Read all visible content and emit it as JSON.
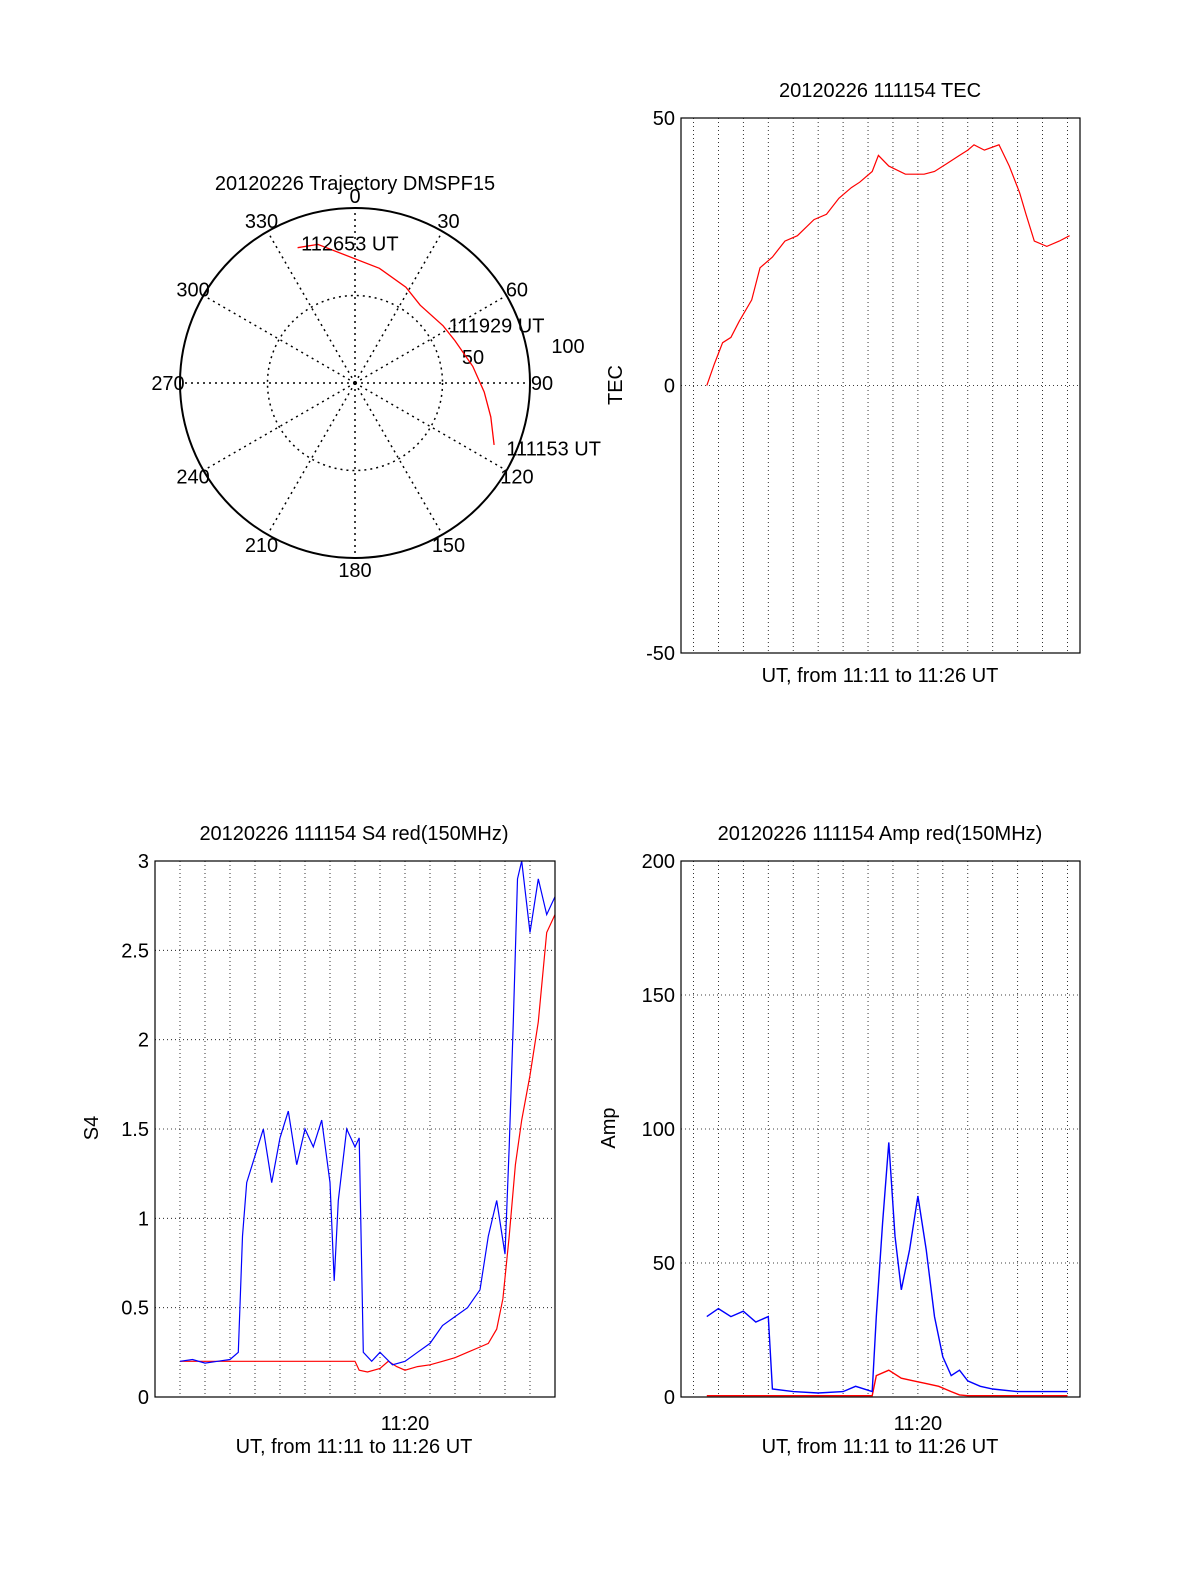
{
  "chart_data": [
    {
      "id": "trajectory",
      "type": "polar",
      "title": "20120226 Trajectory DMSPF15",
      "azimuth_labels": [
        "0",
        "30",
        "60",
        "90",
        "120",
        "150",
        "180",
        "210",
        "240",
        "270",
        "300",
        "330"
      ],
      "radial_labels": [
        "50",
        "100"
      ],
      "rlim": [
        0,
        100
      ],
      "grid": true,
      "track_color": "#ff0000",
      "track": [
        {
          "azimuth": 114,
          "elevation": 13
        },
        {
          "azimuth": 104,
          "elevation": 20
        },
        {
          "azimuth": 94,
          "elevation": 26
        },
        {
          "azimuth": 82,
          "elevation": 32
        },
        {
          "azimuth": 67,
          "elevation": 38
        },
        {
          "azimuth": 57,
          "elevation": 40
        },
        {
          "azimuth": 40,
          "elevation": 42
        },
        {
          "azimuth": 28,
          "elevation": 38
        },
        {
          "azimuth": 12,
          "elevation": 33
        },
        {
          "azimuth": 345,
          "elevation": 18
        },
        {
          "azimuth": 337,
          "elevation": 16
        }
      ],
      "annotations": [
        {
          "text": "112653 UT",
          "azimuth": 339,
          "elevation": 14
        },
        {
          "text": "111929 UT",
          "azimuth": 58,
          "elevation": 37
        },
        {
          "text": "111153 UT",
          "azimuth": 113,
          "elevation": 6
        }
      ]
    },
    {
      "id": "tec",
      "type": "line",
      "title": "20120226 111154 TEC",
      "xlabel": "UT, from 11:11 to 11:26 UT",
      "ylabel": "TEC",
      "xlim": [
        "11:10:30",
        "11:26:30"
      ],
      "ylim": [
        -50,
        50
      ],
      "yticks": [
        "-50",
        "0",
        "50"
      ],
      "xticks": [],
      "grid": true,
      "series": [
        {
          "color": "#ff0000",
          "points": [
            [
              "11:11:32",
              0
            ],
            [
              "11:11:50",
              4
            ],
            [
              "11:12:10",
              8
            ],
            [
              "11:12:30",
              9
            ],
            [
              "11:12:50",
              12
            ],
            [
              "11:13:20",
              16
            ],
            [
              "11:13:40",
              22
            ],
            [
              "11:14:10",
              24
            ],
            [
              "11:14:40",
              27
            ],
            [
              "11:15:10",
              28
            ],
            [
              "11:15:50",
              31
            ],
            [
              "11:16:20",
              32
            ],
            [
              "11:16:50",
              35
            ],
            [
              "11:17:20",
              37
            ],
            [
              "11:17:40",
              38
            ],
            [
              "11:18:10",
              40
            ],
            [
              "11:18:25",
              43
            ],
            [
              "11:18:50",
              41
            ],
            [
              "11:19:30",
              39.5
            ],
            [
              "11:20:15",
              39.5
            ],
            [
              "11:20:40",
              40
            ],
            [
              "11:21:10",
              41.5
            ],
            [
              "11:21:40",
              43
            ],
            [
              "11:22:00",
              44
            ],
            [
              "11:22:15",
              45
            ],
            [
              "11:22:40",
              44
            ],
            [
              "11:23:15",
              45
            ],
            [
              "11:23:40",
              41
            ],
            [
              "11:24:05",
              36
            ],
            [
              "11:24:20",
              32
            ],
            [
              "11:24:40",
              27
            ],
            [
              "11:25:10",
              26
            ],
            [
              "11:25:40",
              27
            ],
            [
              "11:26:05",
              28
            ]
          ]
        }
      ]
    },
    {
      "id": "s4",
      "type": "line",
      "title": "20120226 111154 S4 red(150MHz)",
      "xlabel": "UT, from 11:11 to 11:26 UT",
      "ylabel": "S4",
      "xlim": [
        "11:10:00",
        "11:26:00"
      ],
      "ylim": [
        0,
        3
      ],
      "yticks": [
        "0",
        "0.5",
        "1",
        "1.5",
        "2",
        "2.5",
        "3"
      ],
      "xticks": [
        "11:20"
      ],
      "grid": true,
      "series": [
        {
          "color": "#ff0000",
          "points": [
            [
              "11:11:00",
              0.2
            ],
            [
              "11:11:30",
              0.2
            ],
            [
              "11:12:00",
              0.2
            ],
            [
              "11:12:30",
              0.2
            ],
            [
              "11:13:00",
              0.2
            ],
            [
              "11:13:30",
              0.2
            ],
            [
              "11:14:00",
              0.2
            ],
            [
              "11:15:00",
              0.2
            ],
            [
              "11:16:00",
              0.2
            ],
            [
              "11:17:00",
              0.2
            ],
            [
              "11:18:00",
              0.2
            ],
            [
              "11:18:10",
              0.15
            ],
            [
              "11:18:30",
              0.14
            ],
            [
              "11:19:00",
              0.16
            ],
            [
              "11:19:20",
              0.2
            ],
            [
              "11:19:40",
              0.17
            ],
            [
              "11:20:00",
              0.15
            ],
            [
              "11:20:30",
              0.17
            ],
            [
              "11:21:00",
              0.18
            ],
            [
              "11:21:30",
              0.2
            ],
            [
              "11:22:00",
              0.22
            ],
            [
              "11:22:30",
              0.25
            ],
            [
              "11:23:00",
              0.28
            ],
            [
              "11:23:20",
              0.3
            ],
            [
              "11:23:40",
              0.38
            ],
            [
              "11:23:55",
              0.55
            ],
            [
              "11:24:10",
              0.9
            ],
            [
              "11:24:25",
              1.3
            ],
            [
              "11:24:40",
              1.55
            ],
            [
              "11:25:00",
              1.8
            ],
            [
              "11:25:20",
              2.1
            ],
            [
              "11:25:40",
              2.6
            ],
            [
              "11:26:00",
              2.7
            ]
          ]
        },
        {
          "color": "#0000ff",
          "points": [
            [
              "11:11:00",
              0.2
            ],
            [
              "11:11:30",
              0.21
            ],
            [
              "11:12:00",
              0.19
            ],
            [
              "11:12:30",
              0.2
            ],
            [
              "11:13:00",
              0.21
            ],
            [
              "11:13:20",
              0.25
            ],
            [
              "11:13:30",
              0.9
            ],
            [
              "11:13:40",
              1.2
            ],
            [
              "11:14:00",
              1.35
            ],
            [
              "11:14:20",
              1.5
            ],
            [
              "11:14:40",
              1.2
            ],
            [
              "11:15:00",
              1.45
            ],
            [
              "11:15:20",
              1.6
            ],
            [
              "11:15:40",
              1.3
            ],
            [
              "11:16:00",
              1.5
            ],
            [
              "11:16:20",
              1.4
            ],
            [
              "11:16:40",
              1.55
            ],
            [
              "11:17:00",
              1.2
            ],
            [
              "11:17:10",
              0.65
            ],
            [
              "11:17:20",
              1.1
            ],
            [
              "11:17:40",
              1.5
            ],
            [
              "11:18:00",
              1.4
            ],
            [
              "11:18:10",
              1.45
            ],
            [
              "11:18:20",
              0.25
            ],
            [
              "11:18:40",
              0.2
            ],
            [
              "11:19:00",
              0.25
            ],
            [
              "11:19:30",
              0.18
            ],
            [
              "11:20:00",
              0.2
            ],
            [
              "11:20:30",
              0.25
            ],
            [
              "11:21:00",
              0.3
            ],
            [
              "11:21:30",
              0.4
            ],
            [
              "11:22:00",
              0.45
            ],
            [
              "11:22:30",
              0.5
            ],
            [
              "11:23:00",
              0.6
            ],
            [
              "11:23:20",
              0.9
            ],
            [
              "11:23:40",
              1.1
            ],
            [
              "11:24:00",
              0.8
            ],
            [
              "11:24:10",
              1.4
            ],
            [
              "11:24:20",
              2.1
            ],
            [
              "11:24:30",
              2.9
            ],
            [
              "11:24:40",
              3
            ],
            [
              "11:25:00",
              2.6
            ],
            [
              "11:25:20",
              2.9
            ],
            [
              "11:25:40",
              2.7
            ],
            [
              "11:26:00",
              2.8
            ]
          ]
        }
      ]
    },
    {
      "id": "amp",
      "type": "line",
      "title": "20120226 111154 Amp red(150MHz)",
      "xlabel": "UT, from 11:11 to 11:26 UT",
      "ylabel": "Amp",
      "xlim": [
        "11:10:30",
        "11:26:30"
      ],
      "ylim": [
        0,
        200
      ],
      "yticks": [
        "0",
        "50",
        "100",
        "150",
        "200"
      ],
      "xticks": [
        "11:20"
      ],
      "grid": true,
      "series": [
        {
          "color": "#ff0000",
          "points": [
            [
              "11:11:32",
              0.5
            ],
            [
              "11:14:00",
              0.5
            ],
            [
              "11:16:00",
              0.5
            ],
            [
              "11:17:30",
              0.5
            ],
            [
              "11:18:10",
              0.5
            ],
            [
              "11:18:20",
              8
            ],
            [
              "11:18:50",
              10
            ],
            [
              "11:19:20",
              7
            ],
            [
              "11:19:50",
              6
            ],
            [
              "11:20:20",
              5
            ],
            [
              "11:20:50",
              4
            ],
            [
              "11:21:20",
              2
            ],
            [
              "11:21:40",
              0.8
            ],
            [
              "11:22:00",
              0.5
            ],
            [
              "11:24:00",
              0.5
            ],
            [
              "11:26:00",
              0.5
            ]
          ]
        },
        {
          "color": "#0000ff",
          "points": [
            [
              "11:11:32",
              30
            ],
            [
              "11:12:00",
              33
            ],
            [
              "11:12:30",
              30
            ],
            [
              "11:13:00",
              32
            ],
            [
              "11:13:30",
              28
            ],
            [
              "11:14:00",
              30
            ],
            [
              "11:14:10",
              3
            ],
            [
              "11:15:00",
              2
            ],
            [
              "11:16:00",
              1.5
            ],
            [
              "11:17:00",
              2
            ],
            [
              "11:17:30",
              4
            ],
            [
              "11:18:10",
              2
            ],
            [
              "11:18:20",
              30
            ],
            [
              "11:18:35",
              65
            ],
            [
              "11:18:50",
              95
            ],
            [
              "11:19:05",
              60
            ],
            [
              "11:19:20",
              40
            ],
            [
              "11:19:40",
              55
            ],
            [
              "11:20:00",
              75
            ],
            [
              "11:20:20",
              55
            ],
            [
              "11:20:40",
              30
            ],
            [
              "11:21:00",
              15
            ],
            [
              "11:21:20",
              8
            ],
            [
              "11:21:40",
              10
            ],
            [
              "11:22:00",
              6
            ],
            [
              "11:22:30",
              4
            ],
            [
              "11:23:00",
              3
            ],
            [
              "11:24:00",
              2
            ],
            [
              "11:25:00",
              2
            ],
            [
              "11:26:00",
              2
            ]
          ]
        }
      ]
    }
  ]
}
